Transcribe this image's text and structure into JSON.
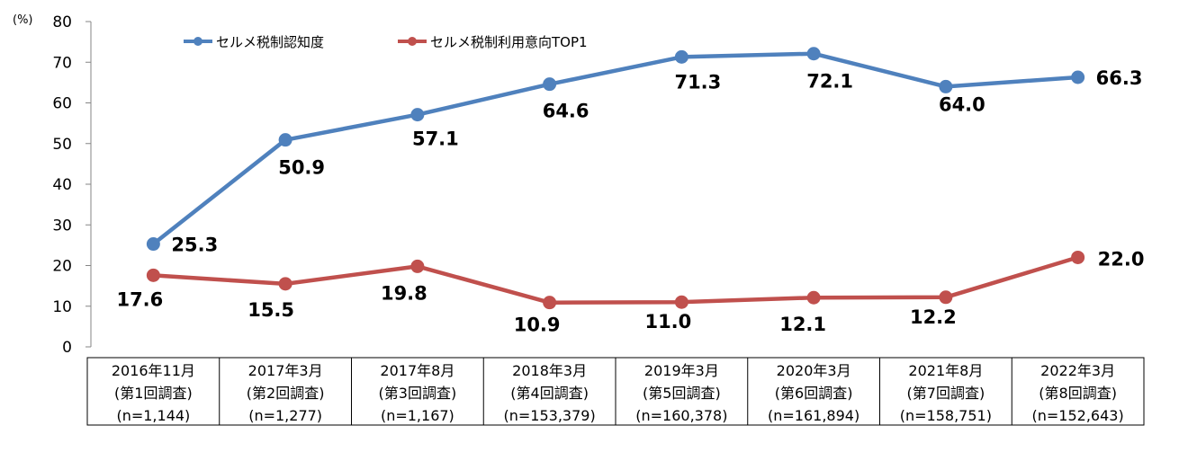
{
  "chart_data": {
    "type": "line",
    "unit_label": "(%)",
    "ylim": [
      0,
      80
    ],
    "yticks": [
      0,
      10,
      20,
      30,
      40,
      50,
      60,
      70,
      80
    ],
    "categories": [
      [
        "2016年11月",
        "(第1回調査)",
        "(n=1,144)"
      ],
      [
        "2017年3月",
        "(第2回調査)",
        "(n=1,277)"
      ],
      [
        "2017年8月",
        "(第3回調査)",
        "(n=1,167)"
      ],
      [
        "2018年3月",
        "(第4回調査)",
        "(n=153,379)"
      ],
      [
        "2019年3月",
        "(第5回調査)",
        "(n=160,378)"
      ],
      [
        "2020年3月",
        "(第6回調査)",
        "(n=161,894)"
      ],
      [
        "2021年8月",
        "(第7回調査)",
        "(n=158,751)"
      ],
      [
        "2022年3月",
        "(第8回調査)",
        "(n=152,643)"
      ]
    ],
    "series": [
      {
        "name": "セルメ税制認知度",
        "color": "#4f81bd",
        "values": [
          25.3,
          50.9,
          57.1,
          64.6,
          71.3,
          72.1,
          64.0,
          66.3
        ],
        "labels": [
          "25.3",
          "50.9",
          "57.1",
          "64.6",
          "71.3",
          "72.1",
          "64.0",
          "66.3"
        ]
      },
      {
        "name": "セルメ税制利用意向TOP1",
        "color": "#c0504d",
        "values": [
          17.6,
          15.5,
          19.8,
          10.9,
          11.0,
          12.1,
          12.2,
          22.0
        ],
        "labels": [
          "17.6",
          "15.5",
          "19.8",
          "10.9",
          "11.0",
          "12.1",
          "12.2",
          "22.0"
        ]
      }
    ],
    "legend_position": "top-left",
    "grid": false
  }
}
